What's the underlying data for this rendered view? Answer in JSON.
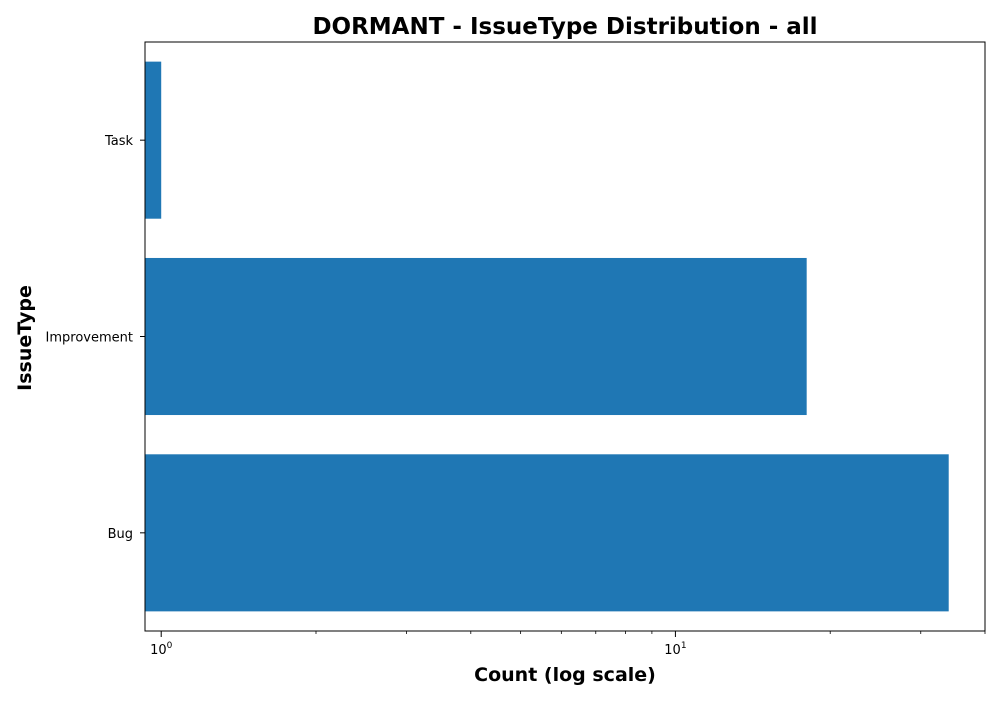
{
  "chart_data": {
    "type": "bar",
    "orientation": "horizontal",
    "title": "DORMANT - IssueType Distribution - all",
    "xlabel": "Count (log scale)",
    "ylabel": "IssueType",
    "x_scale": "log",
    "xlim": [
      0.93,
      40
    ],
    "x_ticks": [
      {
        "value": 1,
        "base": "10",
        "exp": "0"
      },
      {
        "value": 10,
        "base": "10",
        "exp": "1"
      }
    ],
    "categories": [
      "Bug",
      "Improvement",
      "Task"
    ],
    "values": [
      34,
      18,
      1
    ],
    "bar_color": "#1f77b4",
    "grid": false,
    "legend": "none"
  }
}
